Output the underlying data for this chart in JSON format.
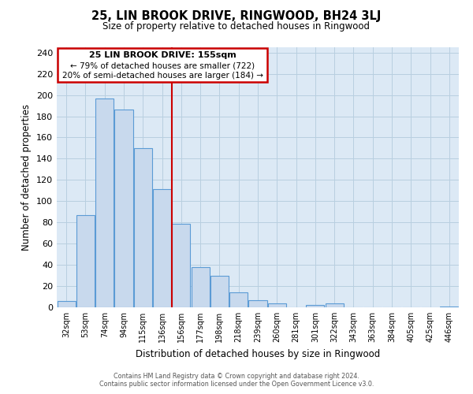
{
  "title": "25, LIN BROOK DRIVE, RINGWOOD, BH24 3LJ",
  "subtitle": "Size of property relative to detached houses in Ringwood",
  "xlabel": "Distribution of detached houses by size in Ringwood",
  "ylabel": "Number of detached properties",
  "bin_labels": [
    "32sqm",
    "53sqm",
    "74sqm",
    "94sqm",
    "115sqm",
    "136sqm",
    "156sqm",
    "177sqm",
    "198sqm",
    "218sqm",
    "239sqm",
    "260sqm",
    "281sqm",
    "301sqm",
    "322sqm",
    "343sqm",
    "363sqm",
    "384sqm",
    "405sqm",
    "425sqm",
    "446sqm"
  ],
  "bar_heights": [
    6,
    87,
    197,
    186,
    150,
    111,
    79,
    38,
    30,
    14,
    7,
    4,
    0,
    2,
    4,
    0,
    0,
    0,
    0,
    0,
    1
  ],
  "bar_color": "#c8d9ed",
  "bar_edge_color": "#5b9bd5",
  "property_line_index": 6,
  "ylim": [
    0,
    245
  ],
  "yticks": [
    0,
    20,
    40,
    60,
    80,
    100,
    120,
    140,
    160,
    180,
    200,
    220,
    240
  ],
  "annotation_title": "25 LIN BROOK DRIVE: 155sqm",
  "annotation_line1": "← 79% of detached houses are smaller (722)",
  "annotation_line2": "20% of semi-detached houses are larger (184) →",
  "annotation_box_color": "#ffffff",
  "annotation_box_edge": "#cc0000",
  "footer_line1": "Contains HM Land Registry data © Crown copyright and database right 2024.",
  "footer_line2": "Contains public sector information licensed under the Open Government Licence v3.0.",
  "property_line_color": "#cc0000",
  "background_color": "#ffffff",
  "plot_bg_color": "#dce9f5",
  "grid_color": "#b8cfe0"
}
